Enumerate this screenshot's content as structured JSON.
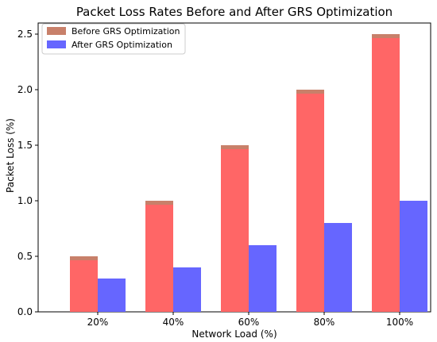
{
  "chart_data": {
    "type": "bar",
    "title": "Packet Loss Rates Before and After GRS Optimization",
    "xlabel": "Network Load (%)",
    "ylabel": "Packet Loss (%)",
    "categories": [
      "20%",
      "40%",
      "60%",
      "80%",
      "100%"
    ],
    "series": [
      {
        "name": "Before GRS Optimization",
        "values": [
          0.5,
          1.0,
          1.5,
          2.0,
          2.5
        ],
        "color": "#ff6666",
        "legend_color": "#c8806a"
      },
      {
        "name": "After GRS Optimization",
        "values": [
          0.3,
          0.4,
          0.6,
          0.8,
          1.0
        ],
        "color": "#6666ff",
        "legend_color": "#6666ff"
      }
    ],
    "ylim": [
      0,
      2.6
    ],
    "yticks": [
      "0.0",
      "0.5",
      "1.0",
      "1.5",
      "2.0",
      "2.5"
    ],
    "grid": false,
    "legend_position": "top-left"
  }
}
